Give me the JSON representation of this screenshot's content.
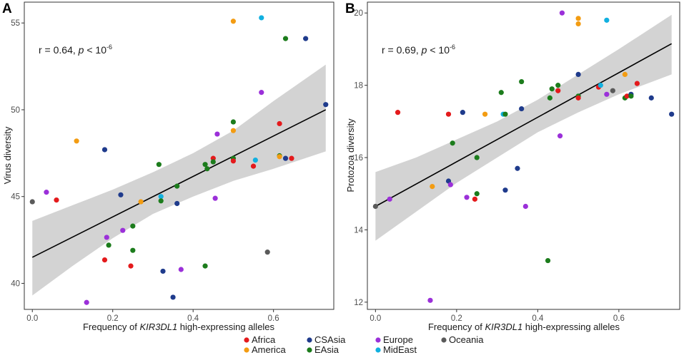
{
  "chart_data": [
    {
      "panel_label": "A",
      "type": "scatter",
      "xlabel_pre": "Frequency of ",
      "xlabel_italic": "KIR3DL1",
      "xlabel_post": " high-expressing alleles",
      "ylabel": "Virus diversity",
      "xlim": [
        -0.02,
        0.75
      ],
      "ylim": [
        38.5,
        56.2
      ],
      "xticks": [
        0.0,
        0.2,
        0.4,
        0.6
      ],
      "xtick_labels": [
        "0.0",
        "0.2",
        "0.4",
        "0.6"
      ],
      "yticks": [
        40,
        45,
        50,
        55
      ],
      "ytick_labels": [
        "40",
        "45",
        "50",
        "55"
      ],
      "annotation": {
        "r_text": "r = 0.64, ",
        "p_text": "p",
        "lt_text": " < 10",
        "exp_text": "-6"
      },
      "fit": {
        "x": [
          0.0,
          0.73
        ],
        "y": [
          41.5,
          50.0
        ]
      },
      "ci_upper": [
        [
          0.0,
          43.6
        ],
        [
          0.1,
          44.5
        ],
        [
          0.2,
          45.4
        ],
        [
          0.3,
          46.4
        ],
        [
          0.4,
          47.5
        ],
        [
          0.5,
          48.8
        ],
        [
          0.6,
          50.5
        ],
        [
          0.73,
          52.6
        ]
      ],
      "ci_lower": [
        [
          0.0,
          39.3
        ],
        [
          0.1,
          41.0
        ],
        [
          0.2,
          42.6
        ],
        [
          0.3,
          44.0
        ],
        [
          0.4,
          45.0
        ],
        [
          0.5,
          45.9
        ],
        [
          0.6,
          46.6
        ],
        [
          0.73,
          47.6
        ]
      ],
      "points": [
        {
          "x": 0.0,
          "y": 44.7,
          "group": "Oceania"
        },
        {
          "x": 0.035,
          "y": 45.25,
          "group": "Europe"
        },
        {
          "x": 0.06,
          "y": 44.8,
          "group": "Africa"
        },
        {
          "x": 0.11,
          "y": 48.2,
          "group": "America"
        },
        {
          "x": 0.135,
          "y": 38.9,
          "group": "Europe"
        },
        {
          "x": 0.18,
          "y": 47.7,
          "group": "CSAsia"
        },
        {
          "x": 0.18,
          "y": 41.35,
          "group": "Africa"
        },
        {
          "x": 0.185,
          "y": 42.65,
          "group": "Europe"
        },
        {
          "x": 0.19,
          "y": 42.2,
          "group": "EAsia"
        },
        {
          "x": 0.22,
          "y": 45.1,
          "group": "CSAsia"
        },
        {
          "x": 0.225,
          "y": 43.05,
          "group": "Europe"
        },
        {
          "x": 0.245,
          "y": 41.0,
          "group": "Africa"
        },
        {
          "x": 0.25,
          "y": 43.3,
          "group": "EAsia"
        },
        {
          "x": 0.25,
          "y": 41.9,
          "group": "EAsia"
        },
        {
          "x": 0.27,
          "y": 44.7,
          "group": "America"
        },
        {
          "x": 0.315,
          "y": 46.85,
          "group": "EAsia"
        },
        {
          "x": 0.32,
          "y": 45.0,
          "group": "MidEast"
        },
        {
          "x": 0.32,
          "y": 44.75,
          "group": "EAsia"
        },
        {
          "x": 0.325,
          "y": 40.7,
          "group": "CSAsia"
        },
        {
          "x": 0.35,
          "y": 39.2,
          "group": "CSAsia"
        },
        {
          "x": 0.36,
          "y": 45.6,
          "group": "EAsia"
        },
        {
          "x": 0.36,
          "y": 44.6,
          "group": "CSAsia"
        },
        {
          "x": 0.37,
          "y": 40.8,
          "group": "Europe"
        },
        {
          "x": 0.43,
          "y": 46.85,
          "group": "EAsia"
        },
        {
          "x": 0.435,
          "y": 46.6,
          "group": "EAsia"
        },
        {
          "x": 0.43,
          "y": 41.0,
          "group": "EAsia"
        },
        {
          "x": 0.45,
          "y": 47.2,
          "group": "Africa"
        },
        {
          "x": 0.45,
          "y": 47.0,
          "group": "EAsia"
        },
        {
          "x": 0.455,
          "y": 44.9,
          "group": "Europe"
        },
        {
          "x": 0.46,
          "y": 48.6,
          "group": "Europe"
        },
        {
          "x": 0.5,
          "y": 55.1,
          "group": "America"
        },
        {
          "x": 0.5,
          "y": 49.3,
          "group": "EAsia"
        },
        {
          "x": 0.5,
          "y": 48.8,
          "group": "America"
        },
        {
          "x": 0.5,
          "y": 47.2,
          "group": "EAsia"
        },
        {
          "x": 0.5,
          "y": 47.05,
          "group": "Africa"
        },
        {
          "x": 0.55,
          "y": 46.75,
          "group": "Africa"
        },
        {
          "x": 0.555,
          "y": 47.1,
          "group": "MidEast"
        },
        {
          "x": 0.57,
          "y": 55.3,
          "group": "MidEast"
        },
        {
          "x": 0.57,
          "y": 51.0,
          "group": "Europe"
        },
        {
          "x": 0.585,
          "y": 41.8,
          "group": "Oceania"
        },
        {
          "x": 0.615,
          "y": 49.2,
          "group": "Africa"
        },
        {
          "x": 0.615,
          "y": 47.35,
          "group": "EAsia"
        },
        {
          "x": 0.615,
          "y": 47.3,
          "group": "America"
        },
        {
          "x": 0.63,
          "y": 54.1,
          "group": "EAsia"
        },
        {
          "x": 0.63,
          "y": 47.2,
          "group": "CSAsia"
        },
        {
          "x": 0.645,
          "y": 47.2,
          "group": "Africa"
        },
        {
          "x": 0.68,
          "y": 54.1,
          "group": "CSAsia"
        },
        {
          "x": 0.73,
          "y": 50.3,
          "group": "CSAsia"
        }
      ]
    },
    {
      "panel_label": "B",
      "type": "scatter",
      "xlabel_pre": "Frequency of ",
      "xlabel_italic": "KIR3DL1",
      "xlabel_post": " high-expressing alleles",
      "ylabel": "Protozoa diversity",
      "xlim": [
        -0.02,
        0.75
      ],
      "ylim": [
        11.8,
        20.3
      ],
      "xticks": [
        0.0,
        0.2,
        0.4,
        0.6
      ],
      "xtick_labels": [
        "0.0",
        "0.2",
        "0.4",
        "0.6"
      ],
      "yticks": [
        12,
        14,
        16,
        18,
        20
      ],
      "ytick_labels": [
        "12",
        "14",
        "16",
        "18",
        "20"
      ],
      "annotation": {
        "r_text": "r = 0.69, ",
        "p_text": "p",
        "lt_text": " < 10",
        "exp_text": "-6"
      },
      "fit": {
        "x": [
          0.0,
          0.73
        ],
        "y": [
          14.65,
          19.15
        ]
      },
      "ci_upper": [
        [
          0.0,
          15.6
        ],
        [
          0.1,
          16.0
        ],
        [
          0.2,
          16.5
        ],
        [
          0.3,
          17.0
        ],
        [
          0.4,
          17.6
        ],
        [
          0.5,
          18.3
        ],
        [
          0.6,
          19.0
        ],
        [
          0.73,
          19.95
        ]
      ],
      "ci_lower": [
        [
          0.0,
          13.7
        ],
        [
          0.1,
          14.5
        ],
        [
          0.2,
          15.3
        ],
        [
          0.3,
          16.0
        ],
        [
          0.4,
          16.7
        ],
        [
          0.5,
          17.25
        ],
        [
          0.6,
          17.75
        ],
        [
          0.73,
          18.3
        ]
      ],
      "points": [
        {
          "x": 0.0,
          "y": 14.65,
          "group": "Oceania"
        },
        {
          "x": 0.035,
          "y": 14.85,
          "group": "Europe"
        },
        {
          "x": 0.055,
          "y": 17.25,
          "group": "Africa"
        },
        {
          "x": 0.135,
          "y": 12.05,
          "group": "Europe"
        },
        {
          "x": 0.14,
          "y": 15.2,
          "group": "America"
        },
        {
          "x": 0.18,
          "y": 17.2,
          "group": "Africa"
        },
        {
          "x": 0.18,
          "y": 15.35,
          "group": "CSAsia"
        },
        {
          "x": 0.185,
          "y": 15.25,
          "group": "Europe"
        },
        {
          "x": 0.19,
          "y": 16.4,
          "group": "EAsia"
        },
        {
          "x": 0.215,
          "y": 17.25,
          "group": "CSAsia"
        },
        {
          "x": 0.225,
          "y": 14.9,
          "group": "Europe"
        },
        {
          "x": 0.245,
          "y": 14.85,
          "group": "Africa"
        },
        {
          "x": 0.25,
          "y": 16.0,
          "group": "EAsia"
        },
        {
          "x": 0.25,
          "y": 15.0,
          "group": "EAsia"
        },
        {
          "x": 0.27,
          "y": 17.2,
          "group": "America"
        },
        {
          "x": 0.31,
          "y": 17.8,
          "group": "EAsia"
        },
        {
          "x": 0.315,
          "y": 17.2,
          "group": "MidEast"
        },
        {
          "x": 0.32,
          "y": 17.2,
          "group": "EAsia"
        },
        {
          "x": 0.32,
          "y": 15.1,
          "group": "CSAsia"
        },
        {
          "x": 0.35,
          "y": 15.7,
          "group": "CSAsia"
        },
        {
          "x": 0.36,
          "y": 18.1,
          "group": "EAsia"
        },
        {
          "x": 0.36,
          "y": 17.35,
          "group": "CSAsia"
        },
        {
          "x": 0.37,
          "y": 14.65,
          "group": "Europe"
        },
        {
          "x": 0.425,
          "y": 13.15,
          "group": "EAsia"
        },
        {
          "x": 0.43,
          "y": 17.65,
          "group": "EAsia"
        },
        {
          "x": 0.435,
          "y": 17.9,
          "group": "EAsia"
        },
        {
          "x": 0.45,
          "y": 17.85,
          "group": "Africa"
        },
        {
          "x": 0.45,
          "y": 18.0,
          "group": "EAsia"
        },
        {
          "x": 0.455,
          "y": 16.6,
          "group": "Europe"
        },
        {
          "x": 0.46,
          "y": 20.0,
          "group": "Europe"
        },
        {
          "x": 0.5,
          "y": 19.85,
          "group": "America"
        },
        {
          "x": 0.5,
          "y": 19.7,
          "group": "America"
        },
        {
          "x": 0.5,
          "y": 18.3,
          "group": "CSAsia"
        },
        {
          "x": 0.5,
          "y": 17.7,
          "group": "EAsia"
        },
        {
          "x": 0.5,
          "y": 17.65,
          "group": "Africa"
        },
        {
          "x": 0.55,
          "y": 17.95,
          "group": "Africa"
        },
        {
          "x": 0.555,
          "y": 18.0,
          "group": "MidEast"
        },
        {
          "x": 0.57,
          "y": 19.8,
          "group": "MidEast"
        },
        {
          "x": 0.57,
          "y": 17.75,
          "group": "Europe"
        },
        {
          "x": 0.585,
          "y": 17.85,
          "group": "Oceania"
        },
        {
          "x": 0.615,
          "y": 18.3,
          "group": "America"
        },
        {
          "x": 0.615,
          "y": 17.65,
          "group": "EAsia"
        },
        {
          "x": 0.62,
          "y": 17.7,
          "group": "Africa"
        },
        {
          "x": 0.63,
          "y": 17.75,
          "group": "CSAsia"
        },
        {
          "x": 0.63,
          "y": 17.7,
          "group": "EAsia"
        },
        {
          "x": 0.645,
          "y": 18.05,
          "group": "Africa"
        },
        {
          "x": 0.68,
          "y": 17.65,
          "group": "CSAsia"
        },
        {
          "x": 0.73,
          "y": 17.2,
          "group": "CSAsia"
        }
      ]
    }
  ],
  "legend": [
    {
      "label": "Africa",
      "color": "#e41a1c"
    },
    {
      "label": "America",
      "color": "#f39c12"
    },
    {
      "label": "CSAsia",
      "color": "#1f3b8c"
    },
    {
      "label": "EAsia",
      "color": "#1c7c1c"
    },
    {
      "label": "Europe",
      "color": "#9b30d9"
    },
    {
      "label": "MidEast",
      "color": "#11b0e0"
    },
    {
      "label": "Oceania",
      "color": "#5a5a5a"
    }
  ]
}
